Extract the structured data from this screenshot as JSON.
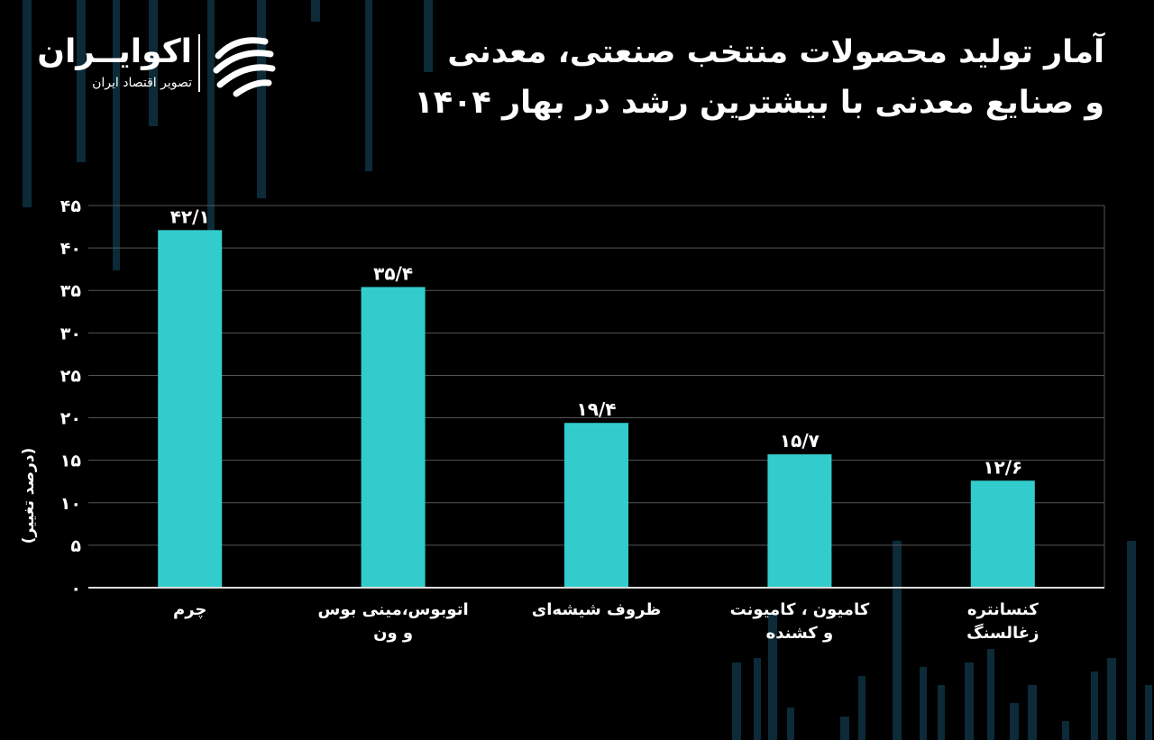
{
  "title_lines": [
    "آمار تولید محصولات منتخب صنعتی، معدنی",
    "و صنایع معدنی با بیشترین رشد در بهار ۱۴۰۴"
  ],
  "logo": {
    "name": "اکوایــران",
    "subtitle": "تصویر اقتصاد ایران"
  },
  "colors": {
    "background": "#000000",
    "bar": "#33CCCC",
    "grid": "#555555",
    "text": "#FFFFFF",
    "decor": "#0C2A38"
  },
  "chart_data": {
    "type": "bar",
    "title": "آمار تولید محصولات منتخب صنعتی، معدنی و صنایع معدنی با بیشترین رشد در بهار ۱۴۰۴",
    "ylabel": "(درصد تغییر)",
    "ylim": [
      0,
      45
    ],
    "grid": true,
    "yticks": [
      0,
      5,
      10,
      15,
      20,
      25,
      30,
      35,
      40,
      45
    ],
    "ytick_labels": [
      "۰",
      "۵",
      "۱۰",
      "۱۵",
      "۲۰",
      "۲۵",
      "۳۰",
      "۳۵",
      "۴۰",
      "۴۵"
    ],
    "categories": [
      "چرم",
      "اتوبوس،مینی بوس\nو ون",
      "ظروف شیشه‌ای",
      "کامیون ، کامیونت\nو کشنده",
      "کنسانتره\nزغالسنگ"
    ],
    "values": [
      42.1,
      35.4,
      19.4,
      15.7,
      12.6
    ],
    "data_labels": [
      "۴۲/۱",
      "۳۵/۴",
      "۱۹/۴",
      "۱۵/۷",
      "۱۲/۶"
    ]
  }
}
